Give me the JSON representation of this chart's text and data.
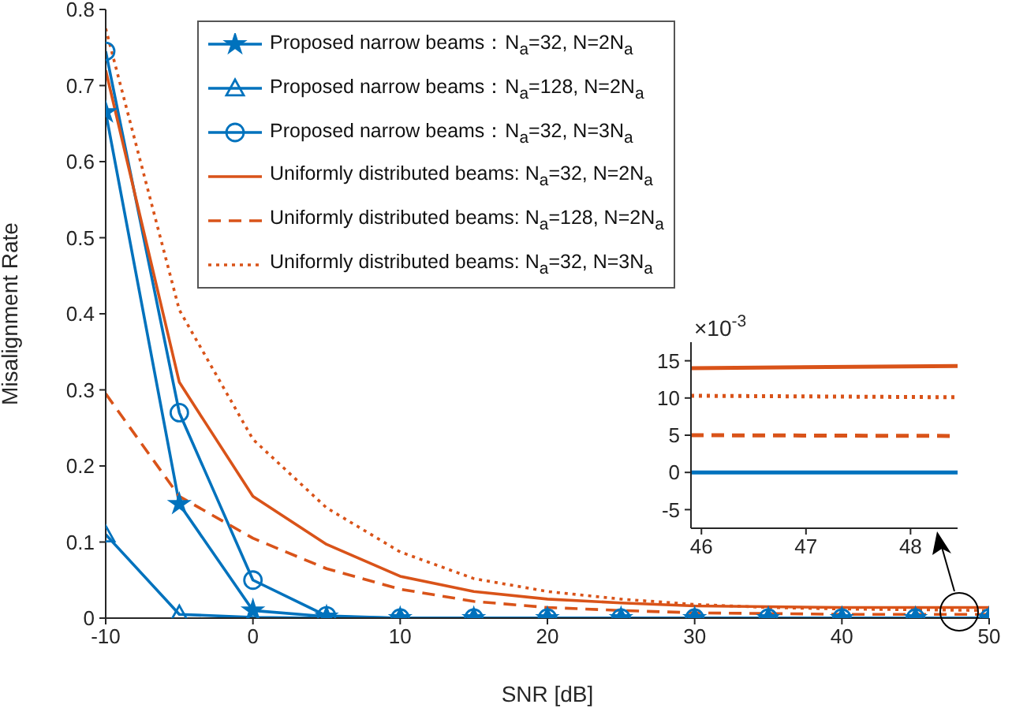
{
  "chart_data": [
    {
      "type": "line",
      "xlabel": "SNR [dB]",
      "ylabel": "Misalignment Rate",
      "x": [
        -10,
        -5,
        0,
        5,
        10,
        15,
        20,
        25,
        30,
        35,
        40,
        45,
        50
      ],
      "xlim": [
        -10,
        50
      ],
      "xticks": [
        -10,
        0,
        10,
        20,
        30,
        40,
        50
      ],
      "ylim": [
        0,
        0.8
      ],
      "yticks": [
        0,
        0.1,
        0.2,
        0.3,
        0.4,
        0.5,
        0.6,
        0.7,
        0.8
      ],
      "grid": false,
      "legend": "top",
      "series": [
        {
          "name": "Proposed narrow beams：N$_{a}$=32, N=2N$_{a}$",
          "color": "#0072bd",
          "marker": "star",
          "line_style": "solid",
          "values": [
            0.665,
            0.15,
            0.01,
            0.002,
            0,
            0,
            0,
            0,
            0,
            0,
            0,
            0,
            0
          ]
        },
        {
          "name": "Proposed narrow beams：N$_{a}$=128, N=2N$_{a}$",
          "color": "#0072bd",
          "marker": "triangle",
          "line_style": "solid",
          "values": [
            0.11,
            0.005,
            0.001,
            0,
            0,
            0,
            0,
            0,
            0,
            0,
            0,
            0,
            0
          ]
        },
        {
          "name": "Proposed narrow beams：N$_{a}$=32, N=3N$_{a}$",
          "color": "#0072bd",
          "marker": "circle",
          "line_style": "solid",
          "values": [
            0.745,
            0.27,
            0.05,
            0.003,
            0,
            0,
            0,
            0,
            0,
            0,
            0,
            0,
            0
          ]
        },
        {
          "name": "Uniformly distributed beams: N$_{a}$=32, N=2N$_{a}$",
          "color": "#d95319",
          "marker": "none",
          "line_style": "solid",
          "values": [
            0.72,
            0.31,
            0.16,
            0.097,
            0.055,
            0.035,
            0.025,
            0.02,
            0.016,
            0.015,
            0.014,
            0.014,
            0.014
          ]
        },
        {
          "name": "Uniformly distributed beams: N$_{a}$=128, N=2N$_{a}$",
          "color": "#d95319",
          "marker": "none",
          "line_style": "dashed",
          "values": [
            0.295,
            0.16,
            0.105,
            0.065,
            0.038,
            0.022,
            0.014,
            0.01,
            0.007,
            0.006,
            0.005,
            0.005,
            0.005
          ]
        },
        {
          "name": "Uniformly distributed beams: N$_{a}$=32, N=3N$_{a}$",
          "color": "#d95319",
          "marker": "none",
          "line_style": "dotted",
          "values": [
            0.775,
            0.405,
            0.235,
            0.145,
            0.087,
            0.052,
            0.035,
            0.025,
            0.018,
            0.014,
            0.012,
            0.011,
            0.01
          ]
        }
      ]
    },
    {
      "type": "line",
      "x": [
        45.9,
        48.45
      ],
      "xlim": [
        45.9,
        48.45
      ],
      "xticks": [
        46,
        47,
        48
      ],
      "ylim": [
        -7.5,
        17.5
      ],
      "yticks": [
        -5,
        0,
        5,
        10,
        15
      ],
      "grid": false,
      "annotations": [
        "×10$^{-3}$"
      ],
      "series": [
        {
          "color": "#0072bd",
          "line_style": "solid",
          "values": [
            0,
            0
          ]
        },
        {
          "color": "#d95319",
          "line_style": "solid",
          "values": [
            14,
            14.3
          ]
        },
        {
          "color": "#d95319",
          "line_style": "dashed",
          "values": [
            5,
            4.9
          ]
        },
        {
          "color": "#d95319",
          "line_style": "dotted",
          "values": [
            10.3,
            10.1
          ]
        }
      ]
    }
  ]
}
